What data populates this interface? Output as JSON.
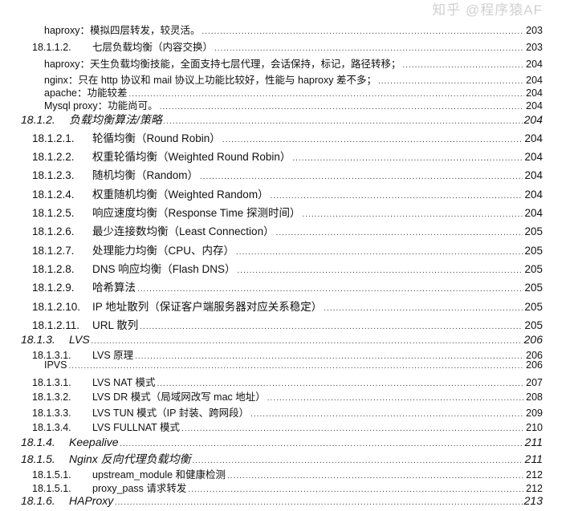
{
  "toc": [
    {
      "level": 3,
      "title": "haproxy：模拟四层转发，较灵活。",
      "page": "203"
    },
    {
      "level": 2,
      "num": "18.1.1.2.",
      "title": "七层负载均衡（内容交换）",
      "page": "203",
      "small": true
    },
    {
      "level": 3,
      "title": "haproxy：天生负载均衡技能，全面支持七层代理，会话保持，标记，路径转移；",
      "page": "204"
    },
    {
      "level": 3,
      "title": "nginx：只在 http 协议和 mail 协议上功能比较好，性能与 haproxy 差不多；",
      "page": "204"
    },
    {
      "level": 3,
      "title": "apache：功能较差",
      "page": "204"
    },
    {
      "level": 3,
      "title": "Mysql proxy：功能尚可。",
      "page": "204"
    },
    {
      "level": 1,
      "num": "18.1.2.",
      "title": "负载均衡算法/策略",
      "page": "204"
    },
    {
      "level": 2,
      "num": "18.1.2.1.",
      "title": "轮循均衡（Round Robin）",
      "page": "204"
    },
    {
      "level": 2,
      "num": "18.1.2.2.",
      "title": "权重轮循均衡（Weighted Round Robin）",
      "page": "204"
    },
    {
      "level": 2,
      "num": "18.1.2.3.",
      "title": "随机均衡（Random）",
      "page": "204"
    },
    {
      "level": 2,
      "num": "18.1.2.4.",
      "title": "权重随机均衡（Weighted Random）",
      "page": "204"
    },
    {
      "level": 2,
      "num": "18.1.2.5.",
      "title": "响应速度均衡（Response Time 探测时间）",
      "page": "204"
    },
    {
      "level": 2,
      "num": "18.1.2.6.",
      "title": "最少连接数均衡（Least Connection）",
      "page": "205"
    },
    {
      "level": 2,
      "num": "18.1.2.7.",
      "title": "处理能力均衡（CPU、内存）",
      "page": "205"
    },
    {
      "level": 2,
      "num": "18.1.2.8.",
      "title": "DNS 响应均衡（Flash DNS）",
      "page": "205"
    },
    {
      "level": 2,
      "num": "18.1.2.9.",
      "title": "哈希算法",
      "page": "205"
    },
    {
      "level": 2,
      "num": "18.1.2.10.",
      "title": "IP 地址散列（保证客户端服务器对应关系稳定）",
      "page": "205"
    },
    {
      "level": 2,
      "num": "18.1.2.11.",
      "title": "URL 散列",
      "page": "205"
    },
    {
      "level": 1,
      "num": "18.1.3.",
      "title": "LVS",
      "page": "206"
    },
    {
      "level": 2,
      "num": "18.1.3.1.",
      "title": "LVS 原理",
      "page": "206",
      "small": true
    },
    {
      "level": 3,
      "title": "IPVS",
      "page": "206"
    },
    {
      "level": 2,
      "num": "18.1.3.1.",
      "title": "LVS NAT 模式",
      "page": "207",
      "small": true
    },
    {
      "level": 2,
      "num": "18.1.3.2.",
      "title": "LVS DR 模式（局域网改写 mac 地址）",
      "page": "208",
      "small": true
    },
    {
      "level": 2,
      "num": "18.1.3.3.",
      "title": "LVS TUN 模式（IP 封装、跨网段）",
      "page": "209",
      "small": true
    },
    {
      "level": 2,
      "num": "18.1.3.4.",
      "title": "LVS FULLNAT 模式",
      "page": "210",
      "small": true
    },
    {
      "level": 1,
      "num": "18.1.4.",
      "title": "Keepalive",
      "page": "211"
    },
    {
      "level": 1,
      "num": "18.1.5.",
      "title": "Nginx 反向代理负载均衡",
      "page": "211"
    },
    {
      "level": 2,
      "num": "18.1.5.1.",
      "title": "upstream_module 和健康检测",
      "page": "212",
      "small": true
    },
    {
      "level": 2,
      "num": "18.1.5.1.",
      "title": "proxy_pass 请求转发",
      "page": "212",
      "small": true
    },
    {
      "level": 1,
      "num": "18.1.6.",
      "title": "HAProxy",
      "page": "213"
    }
  ],
  "watermark": "知乎 @程序猿AF"
}
